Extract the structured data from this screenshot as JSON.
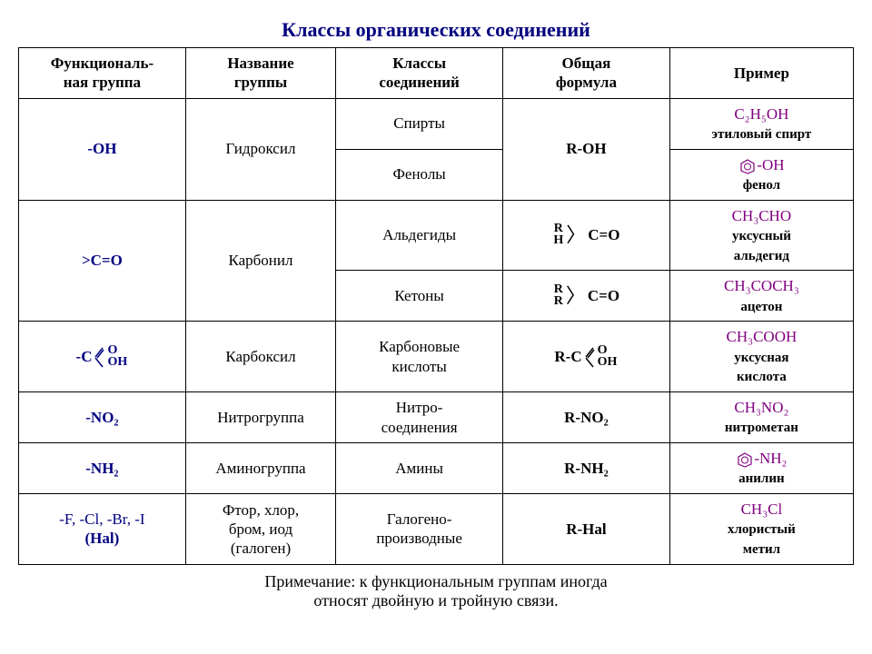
{
  "title": "Классы органических соединений",
  "columns": [
    "Функциональ-\nная группа",
    "Название\nгруппы",
    "Классы\nсоединений",
    "Общая\nформула",
    "Пример"
  ],
  "rows": {
    "r1": {
      "fg": "-OH",
      "name": "Гидроксил",
      "cls_a": "Спирты",
      "cls_b": "Фенолы",
      "gf": "R-OH",
      "ex_a_f": "C₂H₅OH",
      "ex_a_n": "этиловый спирт",
      "ex_b_f": "-OH",
      "ex_b_n": "фенол"
    },
    "r2": {
      "fg": ">C=O",
      "name": "Карбонил",
      "cls_a": "Альдегиды",
      "cls_b": "Кетоны",
      "gf_a_l1": "R",
      "gf_a_l2": "H",
      "gf_a_r": "C=O",
      "gf_b_l1": "R",
      "gf_b_l2": "R",
      "gf_b_r": "C=O",
      "ex_a_f": "CH₃CHO",
      "ex_a_n": "уксусный\nальдегид",
      "ex_b_f": "CH₃COCH₃",
      "ex_b_n": "ацетон"
    },
    "r3": {
      "fg_l": "-C",
      "fg_t": "O",
      "fg_b": "OH",
      "name": "Карбоксил",
      "cls": "Карбоновые\nкислоты",
      "gf_l": "R-C",
      "gf_t": "O",
      "gf_b": "OH",
      "ex_f": "CH₃COOH",
      "ex_n": "уксусная\nкислота"
    },
    "r4": {
      "fg": "-NO₂",
      "name": "Нитрогруппа",
      "cls": "Нитро-\nсоединения",
      "gf": "R-NO₂",
      "ex_f": "CH₃NO₂",
      "ex_n": "нитрометан"
    },
    "r5": {
      "fg": "-NH₂",
      "name": "Аминогруппа",
      "cls": "Амины",
      "gf": "R-NH₂",
      "ex_f": "-NH₂",
      "ex_n": "анилин"
    },
    "r6": {
      "fg_a": "-F, -Cl, -Br, -I",
      "fg_b": "(Hal)",
      "name": "Фтор, хлор,\nбром, иод\n(галоген)",
      "cls": "Галогено-\nпроизводные",
      "gf": "R-Hal",
      "ex_f": "CH₃Cl",
      "ex_n": "хлористый\nметил"
    }
  },
  "footnote": "Примечание: к функциональным группам иногда\nотносят двойную и тройную связи.",
  "colors": {
    "title": "#000080",
    "fg": "#000080",
    "formula": "#800080",
    "text": "#000000",
    "border": "#000000"
  },
  "col_widths_pct": [
    20,
    18,
    20,
    20,
    22
  ]
}
